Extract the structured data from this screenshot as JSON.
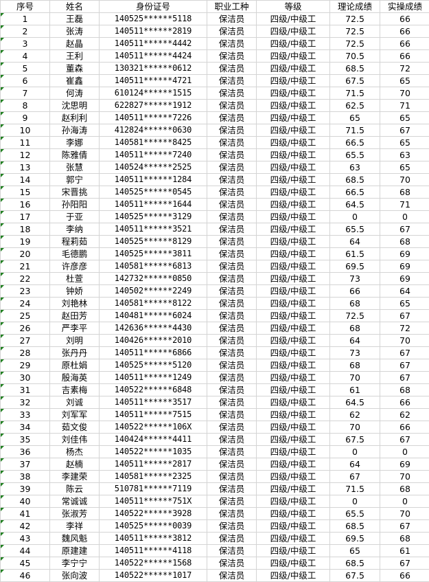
{
  "headers": [
    "序号",
    "姓名",
    "身份证号",
    "职业工种",
    "等级",
    "理论成绩",
    "实操成绩"
  ],
  "rows": [
    [
      "1",
      "王磊",
      "140525******5118",
      "保洁员",
      "四级/中级工",
      "72.5",
      "66"
    ],
    [
      "2",
      "张涛",
      "140511******2819",
      "保洁员",
      "四级/中级工",
      "72.5",
      "66"
    ],
    [
      "3",
      "赵晶",
      "140511******4442",
      "保洁员",
      "四级/中级工",
      "72.5",
      "66"
    ],
    [
      "4",
      "王利",
      "140511******4424",
      "保洁员",
      "四级/中级工",
      "70.5",
      "66"
    ],
    [
      "5",
      "董森",
      "130321******0612",
      "保洁员",
      "四级/中级工",
      "68.5",
      "72"
    ],
    [
      "6",
      "崔鑫",
      "140511******4721",
      "保洁员",
      "四级/中级工",
      "67.5",
      "65"
    ],
    [
      "7",
      "何涛",
      "610124******1515",
      "保洁员",
      "四级/中级工",
      "71.5",
      "70"
    ],
    [
      "8",
      "沈思明",
      "622827******1912",
      "保洁员",
      "四级/中级工",
      "62.5",
      "71"
    ],
    [
      "9",
      "赵利利",
      "140511******7226",
      "保洁员",
      "四级/中级工",
      "65",
      "65"
    ],
    [
      "10",
      "孙海涛",
      "412824******0630",
      "保洁员",
      "四级/中级工",
      "71.5",
      "67"
    ],
    [
      "11",
      "李娜",
      "140581******8425",
      "保洁员",
      "四级/中级工",
      "66.5",
      "65"
    ],
    [
      "12",
      "陈雅倩",
      "140511******7240",
      "保洁员",
      "四级/中级工",
      "65.5",
      "63"
    ],
    [
      "13",
      "张慧",
      "140524******2525",
      "保洁员",
      "四级/中级工",
      "63",
      "65"
    ],
    [
      "14",
      "郭宁",
      "140511******1284",
      "保洁员",
      "四级/中级工",
      "68.5",
      "70"
    ],
    [
      "15",
      "宋晋挑",
      "140525******0545",
      "保洁员",
      "四级/中级工",
      "66.5",
      "68"
    ],
    [
      "16",
      "孙阳阳",
      "140511******1644",
      "保洁员",
      "四级/中级工",
      "64.5",
      "71"
    ],
    [
      "17",
      "于亚",
      "140525******3129",
      "保洁员",
      "四级/中级工",
      "0",
      "0"
    ],
    [
      "18",
      "李纳",
      "140511******3521",
      "保洁员",
      "四级/中级工",
      "65.5",
      "67"
    ],
    [
      "19",
      "程莉茹",
      "140525******8129",
      "保洁员",
      "四级/中级工",
      "64",
      "68"
    ],
    [
      "20",
      "毛德鹏",
      "140525******3811",
      "保洁员",
      "四级/中级工",
      "61.5",
      "69"
    ],
    [
      "21",
      "许彦彦",
      "140581******6813",
      "保洁员",
      "四级/中级工",
      "69.5",
      "69"
    ],
    [
      "22",
      "杜萱",
      "142732******0850",
      "保洁员",
      "四级/中级工",
      "73",
      "69"
    ],
    [
      "23",
      "钟娇",
      "140502******2249",
      "保洁员",
      "四级/中级工",
      "66",
      "64"
    ],
    [
      "24",
      "刘艳林",
      "140581******8122",
      "保洁员",
      "四级/中级工",
      "68",
      "65"
    ],
    [
      "25",
      "赵田芳",
      "140481******6024",
      "保洁员",
      "四级/中级工",
      "72.5",
      "67"
    ],
    [
      "26",
      "严李平",
      "142636******4430",
      "保洁员",
      "四级/中级工",
      "68",
      "72"
    ],
    [
      "27",
      "刘明",
      "140426******2010",
      "保洁员",
      "四级/中级工",
      "64",
      "70"
    ],
    [
      "28",
      "张丹丹",
      "140511******6866",
      "保洁员",
      "四级/中级工",
      "73",
      "67"
    ],
    [
      "29",
      "原杜娟",
      "140525******5120",
      "保洁员",
      "四级/中级工",
      "68",
      "67"
    ],
    [
      "30",
      "殷海英",
      "140511******1249",
      "保洁员",
      "四级/中级工",
      "70",
      "67"
    ],
    [
      "31",
      "吉素梅",
      "140522******6848",
      "保洁员",
      "四级/中级工",
      "61",
      "68"
    ],
    [
      "32",
      "刘诚",
      "140511******3517",
      "保洁员",
      "四级/中级工",
      "64.5",
      "66"
    ],
    [
      "33",
      "刘军军",
      "140511******7515",
      "保洁员",
      "四级/中级工",
      "62",
      "62"
    ],
    [
      "34",
      "茹文俊",
      "140522******106X",
      "保洁员",
      "四级/中级工",
      "70",
      "66"
    ],
    [
      "35",
      "刘佳伟",
      "140424******4411",
      "保洁员",
      "四级/中级工",
      "67.5",
      "67"
    ],
    [
      "36",
      "杨杰",
      "140522******1035",
      "保洁员",
      "四级/中级工",
      "0",
      "0"
    ],
    [
      "37",
      "赵楠",
      "140511******2817",
      "保洁员",
      "四级/中级工",
      "64",
      "69"
    ],
    [
      "38",
      "李建荣",
      "140581******2325",
      "保洁员",
      "四级/中级工",
      "67",
      "70"
    ],
    [
      "39",
      "陈云",
      "510781******7119",
      "保洁员",
      "四级/中级工",
      "71.5",
      "68"
    ],
    [
      "40",
      "常诚诚",
      "140511******751X",
      "保洁员",
      "四级/中级工",
      "0",
      "0"
    ],
    [
      "41",
      "张淑芳",
      "140522******3928",
      "保洁员",
      "四级/中级工",
      "65.5",
      "70"
    ],
    [
      "42",
      "李祥",
      "140525******0039",
      "保洁员",
      "四级/中级工",
      "68.5",
      "67"
    ],
    [
      "43",
      "魏风魁",
      "140511******3812",
      "保洁员",
      "四级/中级工",
      "69.5",
      "68"
    ],
    [
      "44",
      "原建建",
      "140511******4118",
      "保洁员",
      "四级/中级工",
      "65",
      "61"
    ],
    [
      "45",
      "李宁宁",
      "140522******1568",
      "保洁员",
      "四级/中级工",
      "68.5",
      "67"
    ],
    [
      "46",
      "张向波",
      "140522******1017",
      "保洁员",
      "四级/中级工",
      "67.5",
      "66"
    ]
  ]
}
